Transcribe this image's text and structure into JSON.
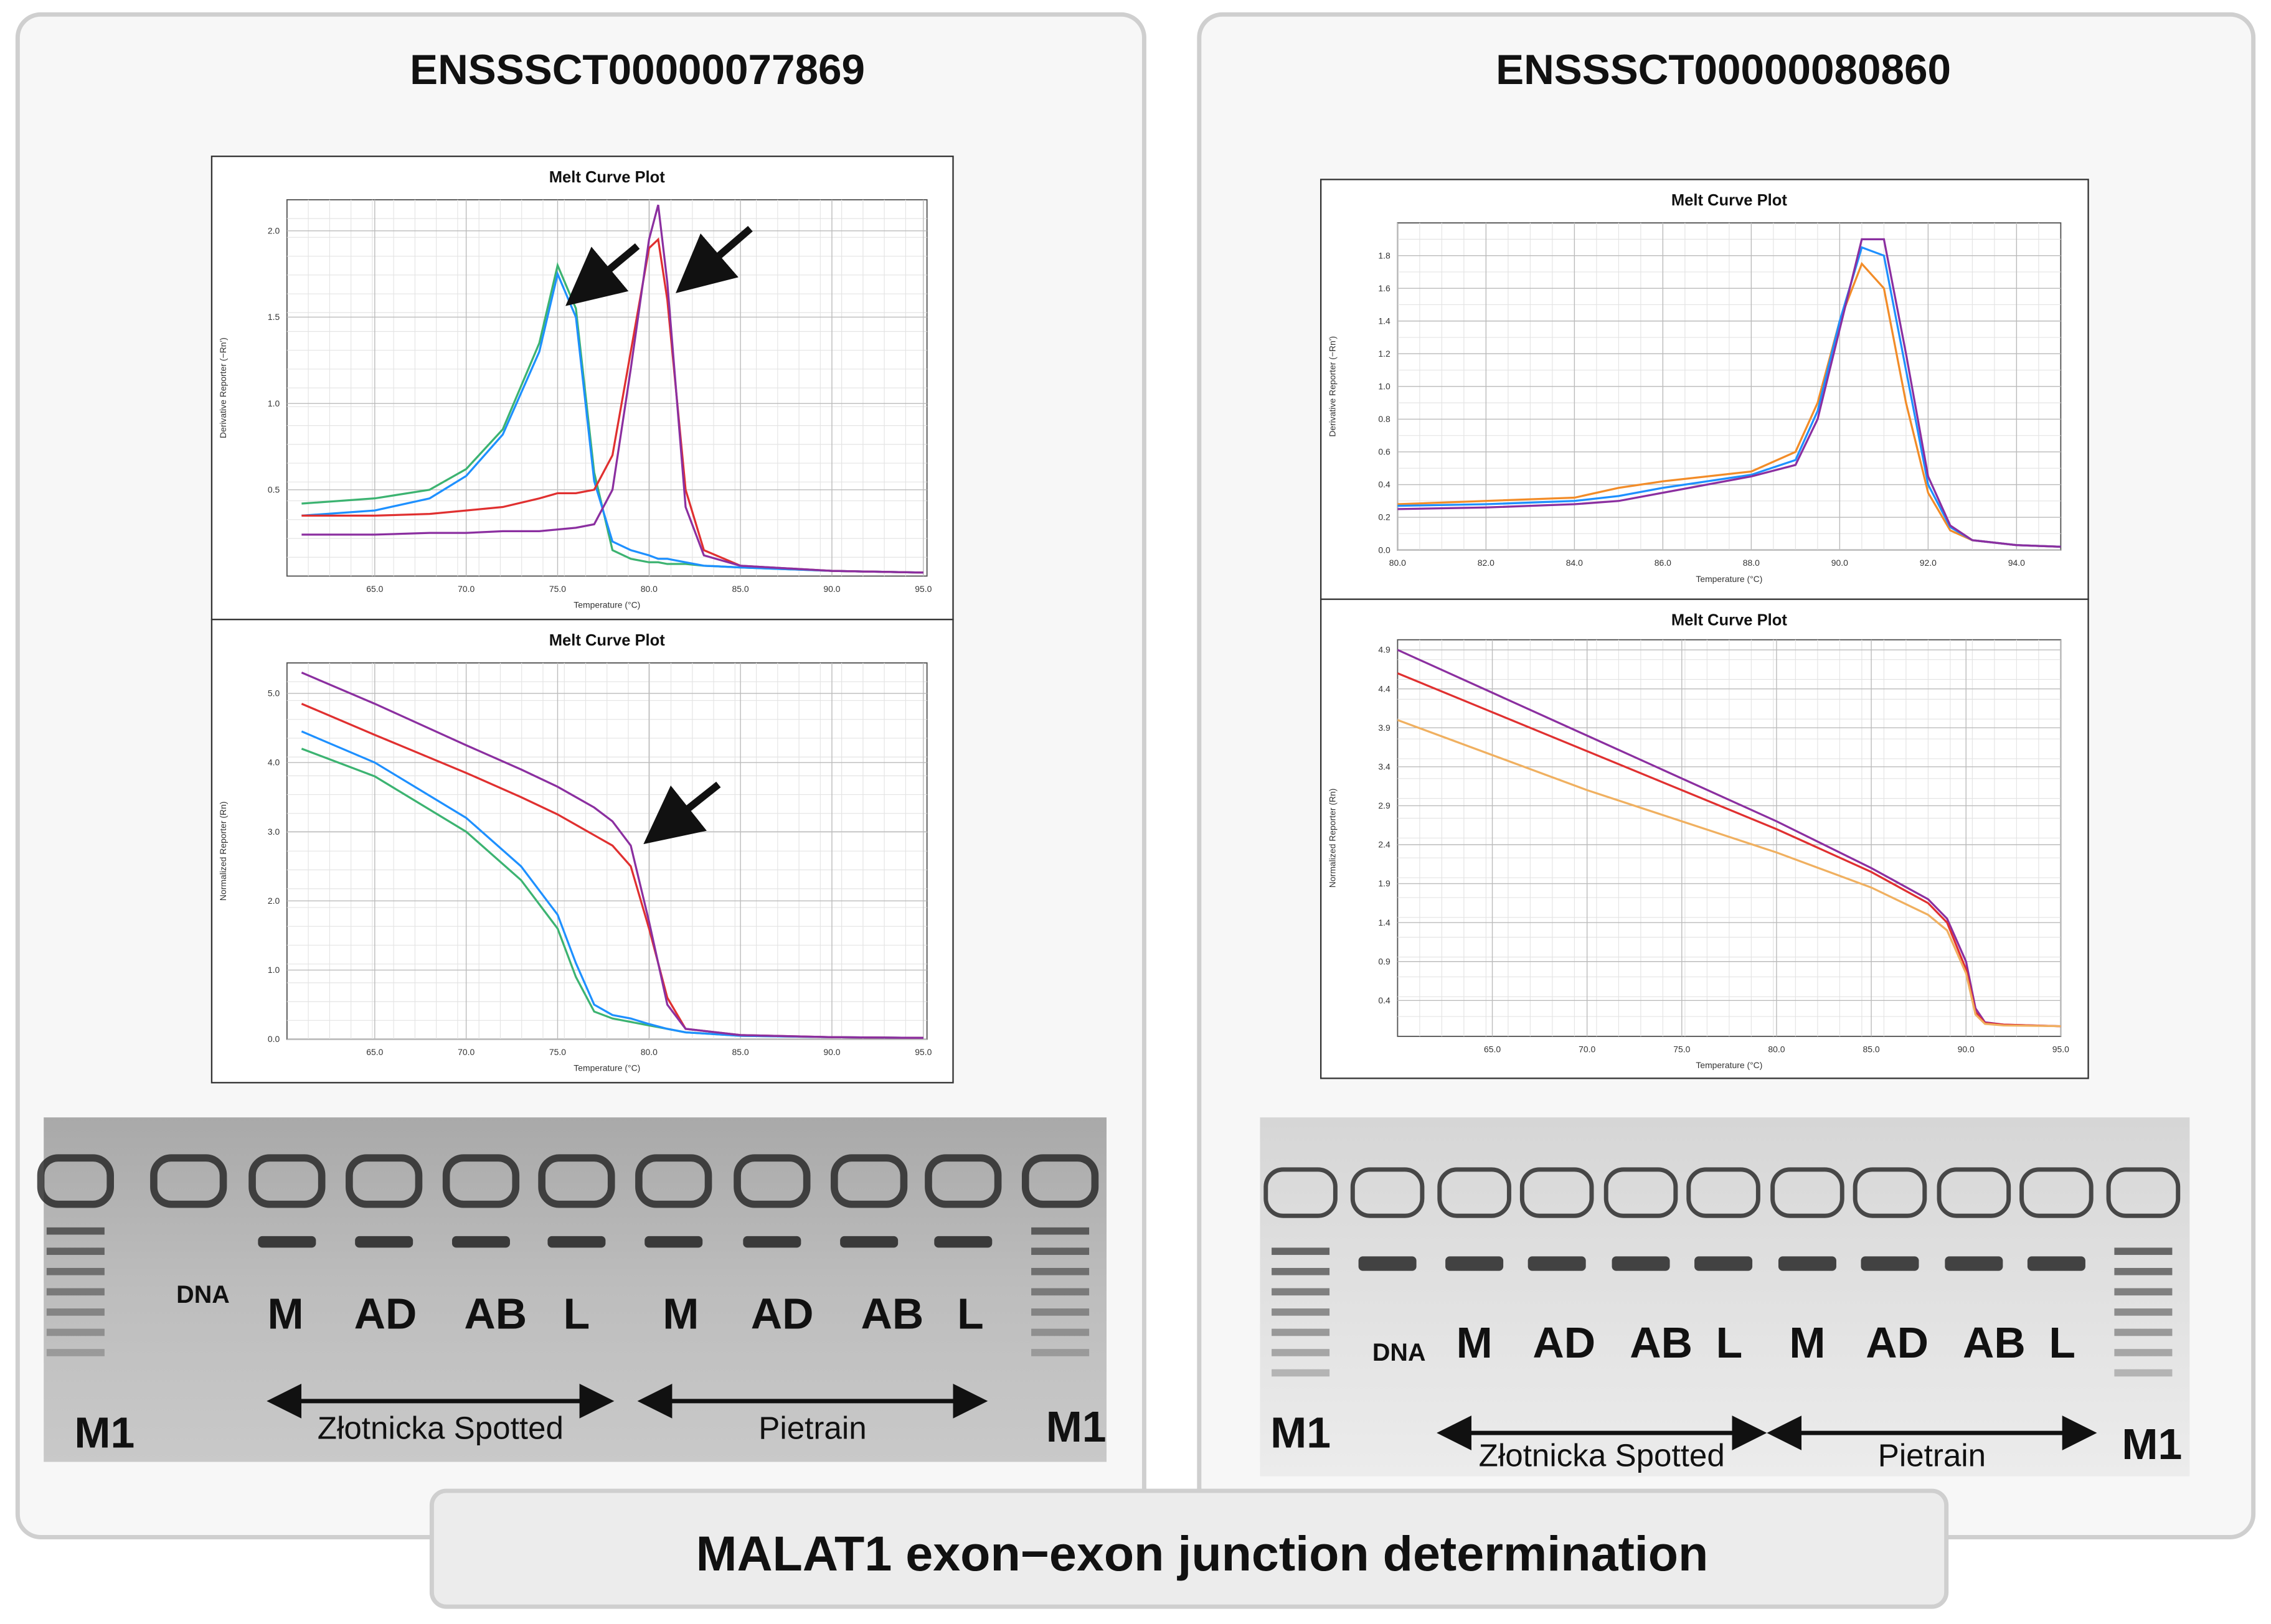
{
  "banner": "MALAT1 exon−exon junction determination",
  "panels": [
    {
      "title": "ENSSSCT00000077869",
      "plots": [
        {
          "type": "line",
          "title": "Melt Curve Plot",
          "x_label": "Temperature (°C)",
          "y_label": "Derivative Reporter (−Rn')",
          "grid": true,
          "xlim": [
            60.2,
            95.2
          ],
          "ylim": [
            0,
            2.18
          ],
          "xticks": [
            {
              "value": 65,
              "label": "65.0"
            },
            {
              "value": 70,
              "label": "70.0"
            },
            {
              "value": 75,
              "label": "75.0"
            },
            {
              "value": 80,
              "label": "80.0"
            },
            {
              "value": 85,
              "label": "85.0"
            },
            {
              "value": 90,
              "label": "90.0"
            },
            {
              "value": 95,
              "label": "95.0"
            }
          ],
          "yticks": [
            0.5,
            {
              "value": 1,
              "label": "1.0"
            },
            1.5,
            {
              "value": 2,
              "label": "2.0"
            }
          ],
          "x": [
            61,
            65,
            68,
            70,
            72,
            74,
            75,
            76,
            77,
            78,
            79,
            80,
            80.5,
            81,
            82,
            83,
            85,
            90,
            95
          ],
          "series": [
            {
              "color": "#3cb371",
              "values": [
                0.42,
                0.45,
                0.5,
                0.62,
                0.85,
                1.35,
                1.8,
                1.55,
                0.6,
                0.15,
                0.1,
                0.08,
                0.08,
                0.07,
                0.07,
                0.06,
                0.05,
                0.03,
                0.02
              ]
            },
            {
              "color": "#1e90ff",
              "values": [
                0.35,
                0.38,
                0.45,
                0.58,
                0.82,
                1.3,
                1.75,
                1.5,
                0.55,
                0.2,
                0.15,
                0.12,
                0.1,
                0.1,
                0.08,
                0.06,
                0.05,
                0.03,
                0.02
              ]
            },
            {
              "color": "#e03030",
              "values": [
                0.35,
                0.35,
                0.36,
                0.38,
                0.4,
                0.45,
                0.48,
                0.48,
                0.5,
                0.7,
                1.3,
                1.9,
                1.95,
                1.6,
                0.5,
                0.15,
                0.06,
                0.03,
                0.02
              ]
            },
            {
              "color": "#8b2fa0",
              "values": [
                0.24,
                0.24,
                0.25,
                0.25,
                0.26,
                0.26,
                0.27,
                0.28,
                0.3,
                0.5,
                1.2,
                1.95,
                2.15,
                1.7,
                0.4,
                0.12,
                0.06,
                0.03,
                0.02
              ]
            }
          ]
        },
        {
          "type": "line",
          "title": "Melt Curve Plot",
          "x_label": "Temperature (°C)",
          "y_label": "Normalized Reporter (Rn)",
          "grid": true,
          "xlim": [
            60.2,
            95.2
          ],
          "ylim": [
            0,
            5.44
          ],
          "xticks": [
            {
              "value": 65,
              "label": "65.0"
            },
            {
              "value": 70,
              "label": "70.0"
            },
            {
              "value": 75,
              "label": "75.0"
            },
            {
              "value": 80,
              "label": "80.0"
            },
            {
              "value": 85,
              "label": "85.0"
            },
            {
              "value": 90,
              "label": "90.0"
            },
            {
              "value": 95,
              "label": "95.0"
            }
          ],
          "yticks": [
            {
              "value": 0,
              "label": "0.0"
            },
            {
              "value": 1,
              "label": "1.0"
            },
            {
              "value": 2,
              "label": "2.0"
            },
            {
              "value": 3,
              "label": "3.0"
            },
            {
              "value": 4,
              "label": "4.0"
            },
            {
              "value": 5,
              "label": "5.0"
            }
          ],
          "x": [
            61,
            65,
            70,
            73,
            75,
            76,
            77,
            78,
            79,
            80,
            81,
            82,
            85,
            90,
            95
          ],
          "series": [
            {
              "color": "#3cb371",
              "values": [
                4.2,
                3.8,
                3.0,
                2.3,
                1.6,
                0.9,
                0.4,
                0.3,
                0.25,
                0.2,
                0.15,
                0.1,
                0.05,
                0.03,
                0.02
              ]
            },
            {
              "color": "#1e90ff",
              "values": [
                4.45,
                4.0,
                3.2,
                2.5,
                1.8,
                1.1,
                0.5,
                0.35,
                0.3,
                0.22,
                0.15,
                0.1,
                0.05,
                0.03,
                0.02
              ]
            },
            {
              "color": "#e03030",
              "values": [
                4.85,
                4.4,
                3.85,
                3.5,
                3.25,
                3.1,
                2.95,
                2.8,
                2.5,
                1.6,
                0.6,
                0.15,
                0.06,
                0.03,
                0.02
              ]
            },
            {
              "color": "#8b2fa0",
              "values": [
                5.3,
                4.85,
                4.25,
                3.9,
                3.65,
                3.5,
                3.35,
                3.15,
                2.8,
                1.7,
                0.5,
                0.15,
                0.06,
                0.03,
                0.02
              ]
            }
          ]
        }
      ],
      "gel": {
        "lane_labels": [
          "DNA",
          "M",
          "AD",
          "AB",
          "L",
          "M",
          "AD",
          "AB",
          "L"
        ],
        "marker_labels": [
          "M1",
          "M1"
        ],
        "groups": [
          "Złotnicka Spotted",
          "Pietrain"
        ]
      }
    },
    {
      "title": "ENSSSCT00000080860",
      "plots": [
        {
          "type": "line",
          "title": "Melt Curve Plot",
          "x_label": "Temperature (°C)",
          "y_label": "Derivative Reporter (−Rn')",
          "grid": true,
          "xlim": [
            80,
            95
          ],
          "ylim": [
            0,
            2.0
          ],
          "xticks": [
            {
              "value": 80,
              "label": "80.0"
            },
            {
              "value": 82,
              "label": "82.0"
            },
            {
              "value": 84,
              "label": "84.0"
            },
            {
              "value": 86,
              "label": "86.0"
            },
            {
              "value": 88,
              "label": "88.0"
            },
            {
              "value": 90,
              "label": "90.0"
            },
            {
              "value": 92,
              "label": "92.0"
            },
            {
              "value": 94,
              "label": "94.0"
            }
          ],
          "yticks": [
            {
              "value": 0,
              "label": "0.0"
            },
            0.2,
            0.4,
            0.6,
            0.8,
            {
              "value": 1,
              "label": "1.0"
            },
            1.2,
            1.4,
            1.6,
            1.8
          ],
          "x": [
            80,
            82,
            84,
            85,
            86,
            87,
            88,
            89,
            89.5,
            90,
            90.5,
            91,
            91.5,
            92,
            92.5,
            93,
            94,
            95
          ],
          "series": [
            {
              "color": "#f28c28",
              "values": [
                0.28,
                0.3,
                0.32,
                0.38,
                0.42,
                0.45,
                0.48,
                0.6,
                0.9,
                1.4,
                1.75,
                1.6,
                0.9,
                0.35,
                0.12,
                0.06,
                0.03,
                0.02
              ]
            },
            {
              "color": "#1e90ff",
              "values": [
                0.27,
                0.28,
                0.3,
                0.33,
                0.38,
                0.42,
                0.46,
                0.55,
                0.85,
                1.4,
                1.85,
                1.8,
                1.1,
                0.4,
                0.14,
                0.06,
                0.03,
                0.02
              ]
            },
            {
              "color": "#8b2fa0",
              "values": [
                0.25,
                0.26,
                0.28,
                0.3,
                0.35,
                0.4,
                0.45,
                0.52,
                0.8,
                1.35,
                1.9,
                1.9,
                1.2,
                0.45,
                0.15,
                0.06,
                0.03,
                0.02
              ]
            }
          ]
        },
        {
          "type": "line",
          "title": "Melt Curve Plot",
          "x_label": "Temperature (°C)",
          "y_label": "Normalized Reporter (Rn)",
          "grid": true,
          "xlim": [
            60,
            95
          ],
          "ylim": [
            -0.06,
            5.03
          ],
          "xticks": [
            {
              "value": 65,
              "label": "65.0"
            },
            {
              "value": 70,
              "label": "70.0"
            },
            {
              "value": 75,
              "label": "75.0"
            },
            {
              "value": 80,
              "label": "80.0"
            },
            {
              "value": 85,
              "label": "85.0"
            },
            {
              "value": 90,
              "label": "90.0"
            },
            {
              "value": 95,
              "label": "95.0"
            }
          ],
          "yticks": [
            0.4,
            0.9,
            1.4,
            1.9,
            2.4,
            2.9,
            3.4,
            3.9,
            4.4,
            4.9
          ],
          "x": [
            60,
            65,
            70,
            75,
            80,
            85,
            88,
            89,
            90,
            90.5,
            91,
            92,
            95
          ],
          "series": [
            {
              "color": "#8b2fa0",
              "values": [
                4.9,
                4.35,
                3.8,
                3.25,
                2.7,
                2.1,
                1.7,
                1.45,
                0.9,
                0.3,
                0.12,
                0.09,
                0.07
              ]
            },
            {
              "color": "#e03030",
              "values": [
                4.6,
                4.1,
                3.6,
                3.1,
                2.6,
                2.05,
                1.65,
                1.4,
                0.8,
                0.25,
                0.11,
                0.09,
                0.07
              ]
            },
            {
              "color": "#f0b060",
              "values": [
                4.0,
                3.55,
                3.1,
                2.7,
                2.3,
                1.85,
                1.5,
                1.3,
                0.75,
                0.22,
                0.1,
                0.08,
                0.07
              ]
            }
          ]
        }
      ],
      "gel": {
        "lane_labels": [
          "DNA",
          "M",
          "AD",
          "AB",
          "L",
          "M",
          "AD",
          "AB",
          "L"
        ],
        "marker_labels": [
          "M1",
          "M1"
        ],
        "groups": [
          "Złotnicka Spotted",
          "Pietrain"
        ]
      }
    }
  ]
}
